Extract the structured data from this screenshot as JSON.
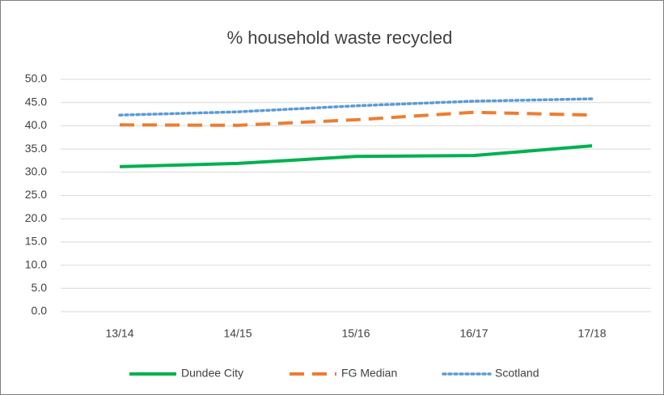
{
  "chart_data": {
    "type": "line",
    "title": "% household waste recycled",
    "categories": [
      "13/14",
      "14/15",
      "15/16",
      "16/17",
      "17/18"
    ],
    "series": [
      {
        "name": "Dundee City",
        "color": "#00b050",
        "dash": "solid",
        "values": [
          31.2,
          31.9,
          33.4,
          33.6,
          35.7
        ]
      },
      {
        "name": "FG Median",
        "color": "#ed7d31",
        "dash": "dashed",
        "values": [
          40.2,
          40.1,
          41.3,
          42.9,
          42.3
        ]
      },
      {
        "name": "Scotland",
        "color": "#5b9bd5",
        "dash": "dotted",
        "values": [
          42.3,
          43.0,
          44.3,
          45.3,
          45.8
        ]
      }
    ],
    "ylim": [
      0,
      50
    ],
    "yticks": [
      {
        "value": 0,
        "label": "0.0"
      },
      {
        "value": 5,
        "label": "5.0"
      },
      {
        "value": 10,
        "label": "10.0"
      },
      {
        "value": 15,
        "label": "15.0"
      },
      {
        "value": 20,
        "label": "20.0"
      },
      {
        "value": 25,
        "label": "25.0"
      },
      {
        "value": 30,
        "label": "30.0"
      },
      {
        "value": 35,
        "label": "35.0"
      },
      {
        "value": 40,
        "label": "40.0"
      },
      {
        "value": 45,
        "label": "45.0"
      },
      {
        "value": 50,
        "label": "50.0"
      }
    ],
    "grid": true,
    "legend": "bottom"
  }
}
